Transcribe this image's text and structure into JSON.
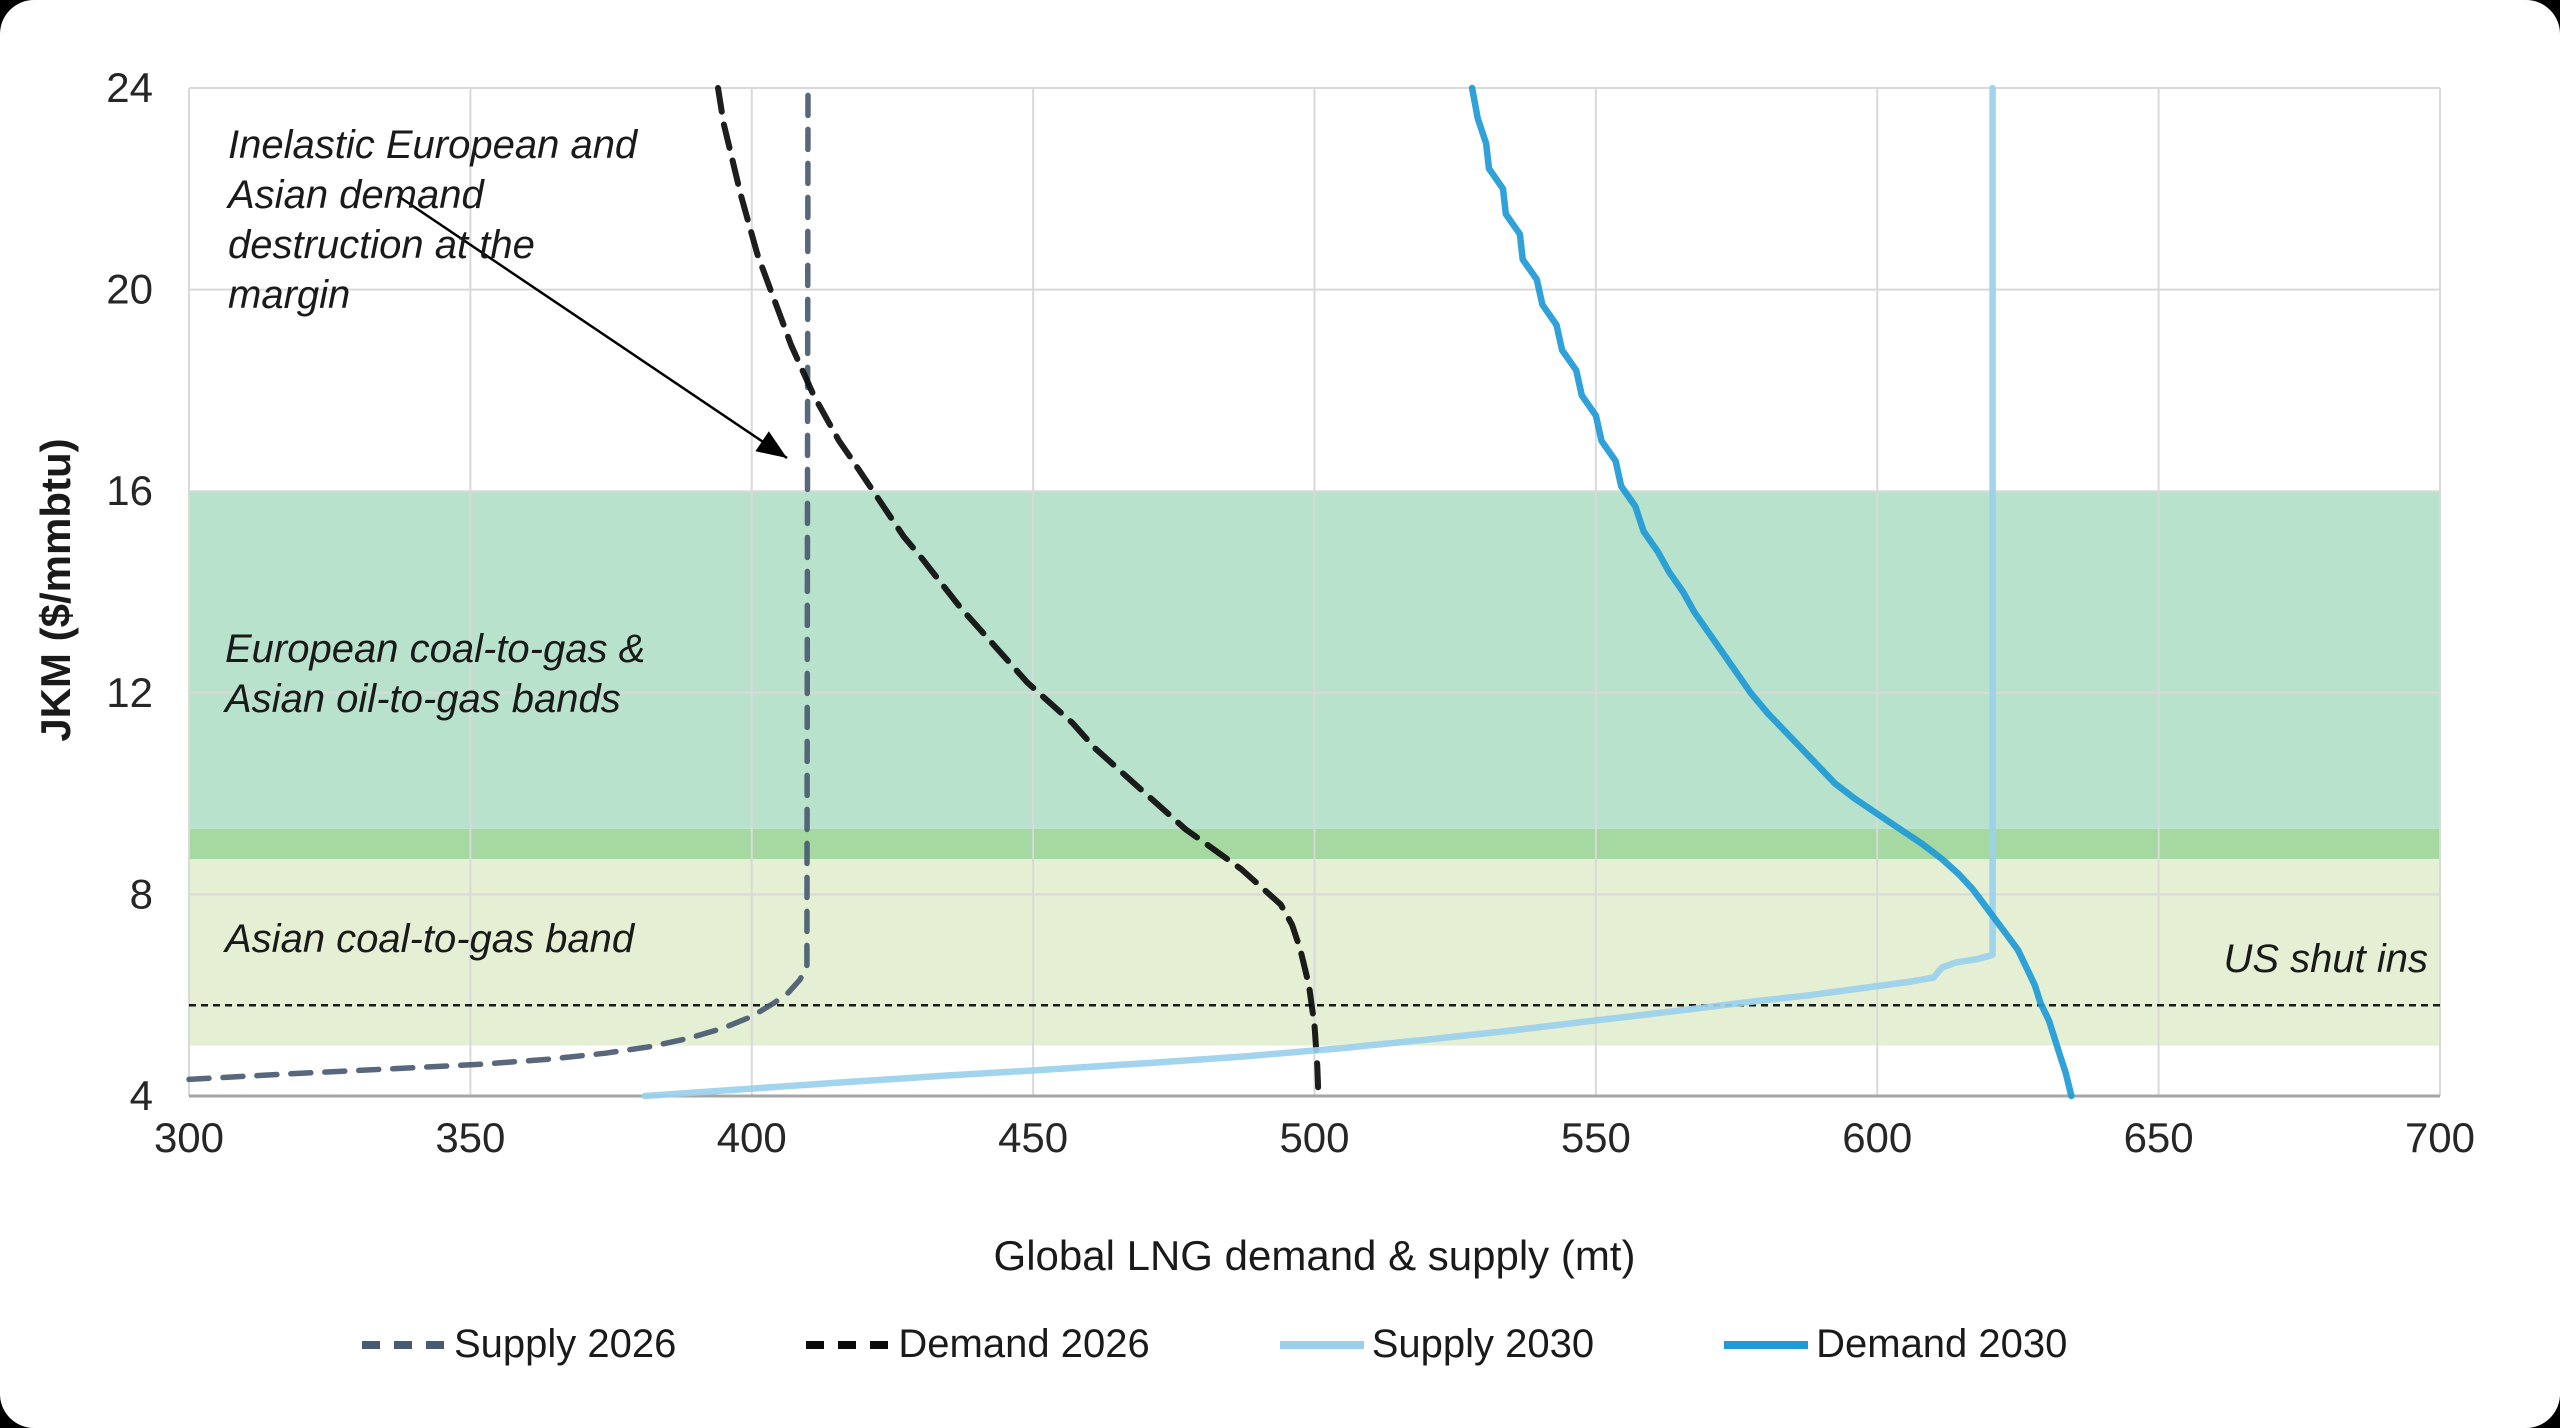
{
  "page": {
    "background": "#000000",
    "card_color": "#ffffff"
  },
  "chart_data": {
    "type": "line",
    "title": "",
    "xlabel": "Global LNG demand & supply (mt)",
    "ylabel": "JKM ($/mmbtu)",
    "xlim": [
      300,
      700
    ],
    "ylim": [
      4,
      24
    ],
    "x_ticks": [
      300,
      350,
      400,
      450,
      500,
      550,
      600,
      650,
      700
    ],
    "y_ticks": [
      4,
      8,
      12,
      16,
      20,
      24
    ],
    "grid": true,
    "grid_color": "#d9d9d9",
    "axis_color": "#a6a6a6",
    "legend_position": "bottom",
    "series": [
      {
        "name": "Supply 2026",
        "style": "dashed",
        "color": "#4a5a71",
        "width": 5.5,
        "dash": "20 14",
        "points": [
          [
            300,
            4.33
          ],
          [
            318,
            4.44
          ],
          [
            336,
            4.54
          ],
          [
            352,
            4.63
          ],
          [
            364,
            4.73
          ],
          [
            374,
            4.85
          ],
          [
            382,
            4.98
          ],
          [
            389,
            5.15
          ],
          [
            395,
            5.35
          ],
          [
            400,
            5.58
          ],
          [
            404,
            5.85
          ],
          [
            406.5,
            6.05
          ],
          [
            408.5,
            6.3
          ],
          [
            409.8,
            6.55
          ],
          [
            410,
            24
          ]
        ]
      },
      {
        "name": "Demand 2026",
        "style": "dashed",
        "color": "#0b0b0b",
        "width": 6,
        "dash": "24 13",
        "points": [
          [
            394,
            24
          ],
          [
            395,
            23.3
          ],
          [
            396.5,
            22.6
          ],
          [
            398,
            21.9
          ],
          [
            399.5,
            21.3
          ],
          [
            401,
            20.7
          ],
          [
            403,
            20.1
          ],
          [
            405,
            19.5
          ],
          [
            407,
            18.9
          ],
          [
            409,
            18.4
          ],
          [
            411,
            17.9
          ],
          [
            413,
            17.5
          ],
          [
            415.5,
            17.0
          ],
          [
            418,
            16.6
          ],
          [
            421,
            16.1
          ],
          [
            424,
            15.6
          ],
          [
            427,
            15.1
          ],
          [
            430,
            14.7
          ],
          [
            433.5,
            14.2
          ],
          [
            437,
            13.7
          ],
          [
            441,
            13.2
          ],
          [
            445,
            12.7
          ],
          [
            449,
            12.2
          ],
          [
            453,
            11.8
          ],
          [
            457,
            11.4
          ],
          [
            461,
            10.9
          ],
          [
            465,
            10.5
          ],
          [
            469,
            10.1
          ],
          [
            473,
            9.7
          ],
          [
            477,
            9.3
          ],
          [
            482,
            8.9
          ],
          [
            487,
            8.5
          ],
          [
            491,
            8.1
          ],
          [
            494,
            7.8
          ],
          [
            496,
            7.4
          ],
          [
            497.5,
            6.9
          ],
          [
            499,
            6.2
          ],
          [
            500,
            5.4
          ],
          [
            500.5,
            4.6
          ],
          [
            500.7,
            4.0
          ]
        ]
      },
      {
        "name": "Supply 2030",
        "style": "solid",
        "color": "#9bd0eb",
        "width": 6.5,
        "dash": "",
        "points": [
          [
            381,
            4.0
          ],
          [
            398,
            4.13
          ],
          [
            416,
            4.27
          ],
          [
            434,
            4.4
          ],
          [
            452,
            4.52
          ],
          [
            470,
            4.65
          ],
          [
            488,
            4.79
          ],
          [
            505,
            4.95
          ],
          [
            520,
            5.12
          ],
          [
            535,
            5.3
          ],
          [
            550,
            5.5
          ],
          [
            563,
            5.67
          ],
          [
            576,
            5.85
          ],
          [
            588,
            6.0
          ],
          [
            598,
            6.15
          ],
          [
            606,
            6.27
          ],
          [
            610,
            6.35
          ],
          [
            611.5,
            6.55
          ],
          [
            614,
            6.65
          ],
          [
            618,
            6.72
          ],
          [
            620.5,
            6.8
          ],
          [
            620.5,
            24
          ]
        ]
      },
      {
        "name": "Demand 2030",
        "style": "solid",
        "color": "#1e9ad6",
        "width": 6.5,
        "dash": "",
        "points": [
          [
            528,
            24
          ],
          [
            529,
            23.4
          ],
          [
            530.5,
            22.9
          ],
          [
            531,
            22.4
          ],
          [
            533.5,
            22.0
          ],
          [
            534,
            21.5
          ],
          [
            536.5,
            21.1
          ],
          [
            537,
            20.6
          ],
          [
            539.5,
            20.2
          ],
          [
            540.5,
            19.7
          ],
          [
            543,
            19.3
          ],
          [
            544,
            18.8
          ],
          [
            546.5,
            18.4
          ],
          [
            547.5,
            17.9
          ],
          [
            550,
            17.5
          ],
          [
            551,
            17.0
          ],
          [
            553.5,
            16.6
          ],
          [
            554.5,
            16.1
          ],
          [
            557,
            15.7
          ],
          [
            558.5,
            15.2
          ],
          [
            561,
            14.8
          ],
          [
            563,
            14.4
          ],
          [
            565.5,
            14.0
          ],
          [
            567.5,
            13.6
          ],
          [
            570,
            13.2
          ],
          [
            572.5,
            12.8
          ],
          [
            575,
            12.4
          ],
          [
            577.5,
            12.0
          ],
          [
            580.5,
            11.6
          ],
          [
            583.5,
            11.25
          ],
          [
            586.5,
            10.9
          ],
          [
            589.5,
            10.55
          ],
          [
            592.5,
            10.2
          ],
          [
            596,
            9.9
          ],
          [
            600,
            9.6
          ],
          [
            604,
            9.3
          ],
          [
            608,
            9.0
          ],
          [
            611.5,
            8.7
          ],
          [
            614.5,
            8.4
          ],
          [
            617,
            8.1
          ],
          [
            619,
            7.8
          ],
          [
            621,
            7.5
          ],
          [
            623,
            7.2
          ],
          [
            625,
            6.9
          ],
          [
            626.5,
            6.55
          ],
          [
            628,
            6.2
          ],
          [
            629,
            5.85
          ],
          [
            630.5,
            5.5
          ],
          [
            631.5,
            5.15
          ],
          [
            632.5,
            4.8
          ],
          [
            633.5,
            4.45
          ],
          [
            634.5,
            4.0
          ]
        ]
      }
    ],
    "bands": [
      {
        "id": "european-band",
        "from_y": 16.0,
        "to_y": 9.3,
        "color": "#b9e2cd"
      },
      {
        "id": "band-overlap",
        "from_y": 9.3,
        "to_y": 8.7,
        "color": "#a6d8a1"
      },
      {
        "id": "asian-band",
        "from_y": 8.7,
        "to_y": 5.0,
        "color": "#e4efd3"
      }
    ],
    "reference_line": {
      "y": 5.8,
      "style": "dotted",
      "color": "#1a1a1a",
      "label": "US shut ins"
    },
    "annotations": [
      {
        "id": "inelastic",
        "lines": [
          "Inelastic European and",
          "Asian demand",
          "destruction at the",
          "margin"
        ],
        "has_arrow": true
      },
      {
        "id": "european-band",
        "lines": [
          "European coal-to-gas &",
          "Asian oil-to-gas bands"
        ],
        "has_arrow": false
      },
      {
        "id": "asian-band",
        "lines": [
          "Asian coal-to-gas band"
        ],
        "has_arrow": false
      },
      {
        "id": "us-shut-ins",
        "lines": [
          "US shut ins"
        ],
        "has_arrow": false
      }
    ]
  },
  "legend": {
    "items": [
      {
        "label": "Supply 2026"
      },
      {
        "label": "Demand 2026"
      },
      {
        "label": "Supply 2030"
      },
      {
        "label": "Demand 2030"
      }
    ]
  }
}
